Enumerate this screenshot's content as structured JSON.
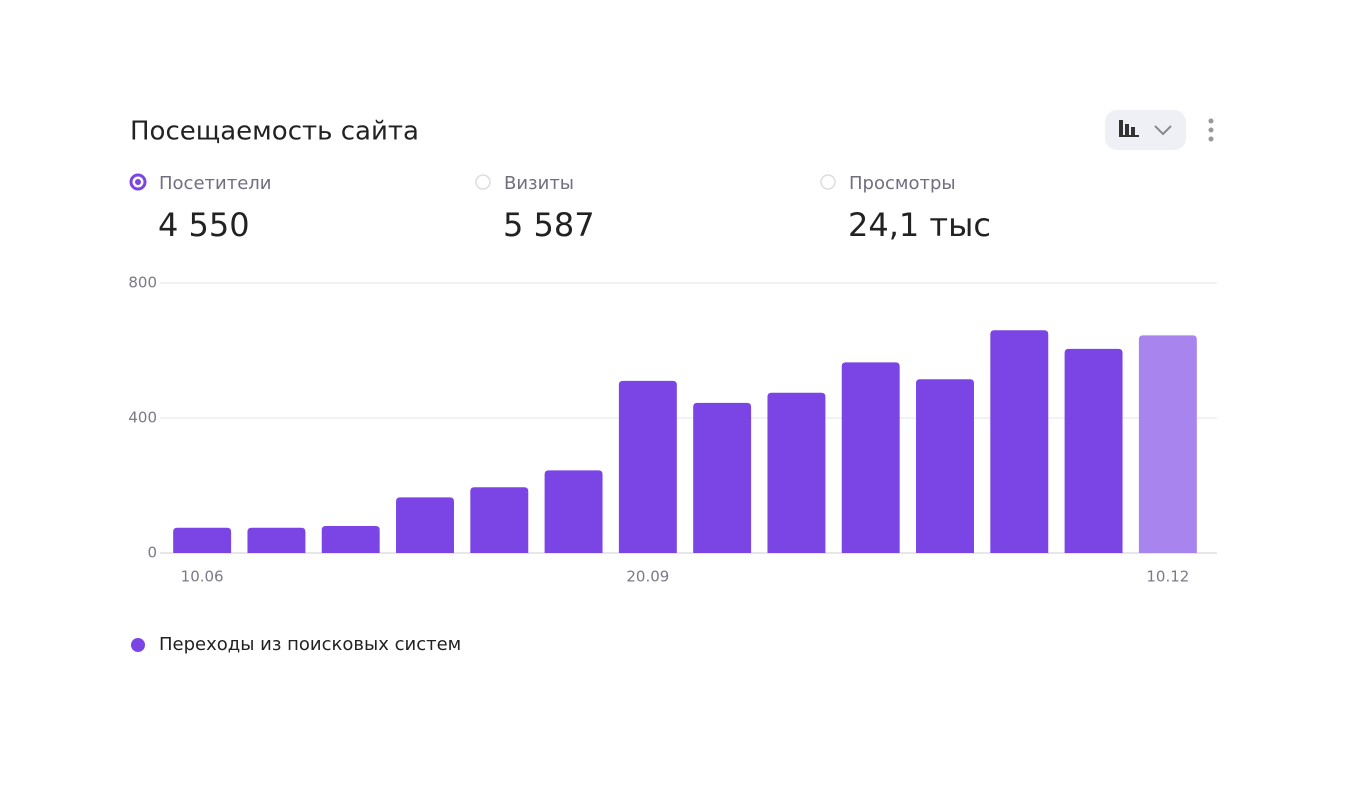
{
  "header": {
    "title": "Посещаемость сайта"
  },
  "metrics": [
    {
      "label": "Посетители",
      "value": "4 550",
      "selected": true
    },
    {
      "label": "Визиты",
      "value": "5 587",
      "selected": false
    },
    {
      "label": "Просмотры",
      "value": "24,1 тыс",
      "selected": false
    }
  ],
  "chart_data": {
    "type": "bar",
    "categories": [
      "10.06",
      null,
      null,
      null,
      null,
      null,
      "20.09",
      null,
      null,
      null,
      null,
      null,
      null,
      "10.12"
    ],
    "series": [
      {
        "name": "Переходы из поисковых систем",
        "color": "#7b45e6",
        "values": [
          75,
          75,
          80,
          165,
          195,
          245,
          510,
          445,
          475,
          565,
          515,
          660,
          605,
          645
        ]
      }
    ],
    "bar_colors": [
      "#7b45e6",
      "#7b45e6",
      "#7b45e6",
      "#7b45e6",
      "#7b45e6",
      "#7b45e6",
      "#7b45e6",
      "#7b45e6",
      "#7b45e6",
      "#7b45e6",
      "#7b45e6",
      "#7b45e6",
      "#7b45e6",
      "#a884ee"
    ],
    "ylim": [
      0,
      800
    ],
    "yticks": [
      0,
      400,
      800
    ],
    "grid": true,
    "legend": "bottom-left"
  }
}
